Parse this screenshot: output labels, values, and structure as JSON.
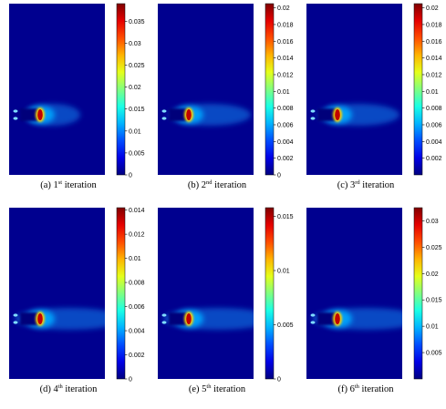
{
  "colors": {
    "background_field": "#00008f",
    "tick": "#000000"
  },
  "chart_data": [
    {
      "type": "heatmap",
      "caption": {
        "prefix": "(a) 1",
        "sup": "st",
        "suffix": " iteration"
      },
      "colorbar": {
        "min": 0,
        "max": 0.039,
        "ticks": [
          0,
          0.005,
          0.01,
          0.015,
          0.02,
          0.025,
          0.03,
          0.035
        ]
      },
      "hotspot": {
        "peak_value": 0.039,
        "wake_length": "short"
      }
    },
    {
      "type": "heatmap",
      "caption": {
        "prefix": "(b) 2",
        "sup": "nd",
        "suffix": " iteration"
      },
      "colorbar": {
        "min": 0,
        "max": 0.0205,
        "ticks": [
          0,
          0.002,
          0.004,
          0.006,
          0.008,
          0.01,
          0.012,
          0.014,
          0.016,
          0.018,
          0.02
        ]
      },
      "hotspot": {
        "peak_value": 0.0205,
        "wake_length": "medium"
      }
    },
    {
      "type": "heatmap",
      "caption": {
        "prefix": "(c) 3",
        "sup": "rd",
        "suffix": " iteration"
      },
      "colorbar": {
        "min": 0,
        "max": 0.0205,
        "ticks": [
          0.002,
          0.004,
          0.006,
          0.008,
          0.01,
          0.012,
          0.014,
          0.016,
          0.018,
          0.02
        ]
      },
      "hotspot": {
        "peak_value": 0.0205,
        "wake_length": "medium"
      }
    },
    {
      "type": "heatmap",
      "caption": {
        "prefix": "(d) 4",
        "sup": "th",
        "suffix": " iteration"
      },
      "colorbar": {
        "min": 0,
        "max": 0.0142,
        "ticks": [
          0,
          0.002,
          0.004,
          0.006,
          0.008,
          0.01,
          0.012,
          0.014
        ]
      },
      "hotspot": {
        "peak_value": 0.0142,
        "wake_length": "long"
      }
    },
    {
      "type": "heatmap",
      "caption": {
        "prefix": "(e) 5",
        "sup": "th",
        "suffix": " iteration"
      },
      "colorbar": {
        "min": 0,
        "max": 0.0158,
        "ticks": [
          0,
          0.005,
          0.01,
          0.015
        ]
      },
      "hotspot": {
        "peak_value": 0.0158,
        "wake_length": "long"
      }
    },
    {
      "type": "heatmap",
      "caption": {
        "prefix": "(f) 6",
        "sup": "th",
        "suffix": " iteration"
      },
      "colorbar": {
        "min": 0,
        "max": 0.0325,
        "ticks": [
          0.005,
          0.01,
          0.015,
          0.02,
          0.025,
          0.03
        ]
      },
      "hotspot": {
        "peak_value": 0.0325,
        "wake_length": "long"
      }
    }
  ]
}
